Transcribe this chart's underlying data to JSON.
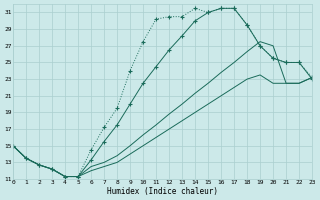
{
  "xlabel": "Humidex (Indice chaleur)",
  "bg_color": "#cce9e9",
  "grid_color": "#aacfcf",
  "line_color": "#1a6b5a",
  "xlim": [
    0,
    23
  ],
  "ylim": [
    11,
    32
  ],
  "xticks": [
    0,
    1,
    2,
    3,
    4,
    5,
    6,
    7,
    8,
    9,
    10,
    11,
    12,
    13,
    14,
    15,
    16,
    17,
    18,
    19,
    20,
    21,
    22,
    23
  ],
  "yticks": [
    11,
    13,
    15,
    17,
    19,
    21,
    23,
    25,
    27,
    29,
    31
  ],
  "curve_dotted_x": [
    0,
    1,
    2,
    3,
    4,
    5,
    6,
    7,
    8,
    9,
    10,
    11,
    12,
    13,
    14,
    15,
    16,
    17,
    18,
    19,
    20,
    21,
    22,
    23
  ],
  "curve_dotted_y": [
    15,
    13.5,
    12.7,
    12.2,
    11.3,
    11.3,
    14.5,
    17.2,
    19.5,
    24.0,
    27.5,
    30.2,
    30.5,
    30.5,
    31.5,
    31.0,
    31.5,
    31.5,
    29.5,
    27.0,
    25.5,
    25.0,
    25.0,
    23.2
  ],
  "curve_solid_top_x": [
    0,
    1,
    2,
    3,
    4,
    5,
    6,
    7,
    8,
    9,
    10,
    11,
    12,
    13,
    14,
    15,
    16,
    17,
    18,
    19,
    20,
    21,
    22,
    23
  ],
  "curve_solid_top_y": [
    15,
    13.5,
    12.7,
    12.2,
    11.3,
    11.3,
    13.3,
    15.5,
    17.5,
    20.0,
    22.5,
    24.5,
    26.5,
    28.2,
    30.0,
    31.0,
    31.5,
    31.5,
    29.5,
    27.0,
    25.5,
    25.0,
    25.0,
    23.0
  ],
  "curve_diag1_x": [
    0,
    1,
    2,
    3,
    4,
    5,
    6,
    7,
    8,
    9,
    10,
    11,
    12,
    13,
    14,
    15,
    16,
    17,
    18,
    19,
    20,
    21,
    22,
    23
  ],
  "curve_diag1_y": [
    15,
    13.5,
    12.7,
    12.2,
    11.3,
    11.3,
    12.5,
    13.0,
    13.8,
    15.0,
    16.3,
    17.5,
    18.8,
    20.0,
    21.3,
    22.5,
    23.8,
    25.0,
    26.3,
    27.5,
    27.0,
    22.5,
    22.5,
    23.2
  ],
  "curve_diag2_x": [
    0,
    1,
    2,
    3,
    4,
    5,
    6,
    7,
    8,
    9,
    10,
    11,
    12,
    13,
    14,
    15,
    16,
    17,
    18,
    19,
    20,
    21,
    22,
    23
  ],
  "curve_diag2_y": [
    15,
    13.5,
    12.7,
    12.2,
    11.3,
    11.3,
    12.0,
    12.5,
    13.0,
    14.0,
    15.0,
    16.0,
    17.0,
    18.0,
    19.0,
    20.0,
    21.0,
    22.0,
    23.0,
    23.5,
    22.5,
    22.5,
    22.5,
    23.2
  ]
}
